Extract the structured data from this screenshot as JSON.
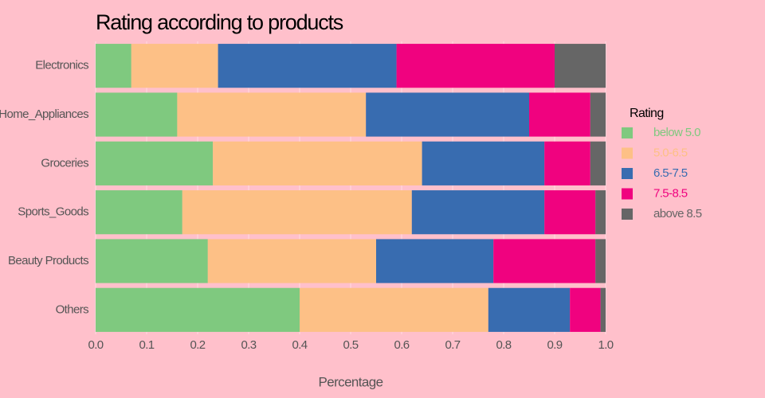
{
  "chart_data": {
    "type": "stacked-barh",
    "title": "Rating according to products",
    "xlabel": "Percentage",
    "legend_title": "Rating",
    "categories": [
      "Electronics",
      "Home_Appliances",
      "Groceries",
      "Sports_Goods",
      "Beauty Products",
      "Others"
    ],
    "series": [
      {
        "name": "below 5.0",
        "color": "#7fc97f",
        "values": [
          0.07,
          0.16,
          0.23,
          0.17,
          0.22,
          0.4
        ]
      },
      {
        "name": "5.0-6.5",
        "color": "#fdc086",
        "values": [
          0.17,
          0.37,
          0.41,
          0.45,
          0.33,
          0.37
        ]
      },
      {
        "name": "6.5-7.5",
        "color": "#386cb0",
        "values": [
          0.35,
          0.32,
          0.24,
          0.26,
          0.23,
          0.16
        ]
      },
      {
        "name": "7.5-8.5",
        "color": "#f0027f",
        "values": [
          0.31,
          0.12,
          0.09,
          0.1,
          0.2,
          0.06
        ]
      },
      {
        "name": "above 8.5",
        "color": "#666666",
        "values": [
          0.1,
          0.03,
          0.03,
          0.02,
          0.02,
          0.01
        ]
      }
    ],
    "xlim": [
      0,
      1
    ],
    "xticks": [
      {
        "value": 0,
        "label": "0.0"
      },
      0.1,
      0.2,
      0.3,
      0.4,
      0.5,
      0.6,
      0.7,
      0.8,
      0.9,
      {
        "value": 1,
        "label": "1.0"
      }
    ],
    "grid": true,
    "legend": "right"
  }
}
